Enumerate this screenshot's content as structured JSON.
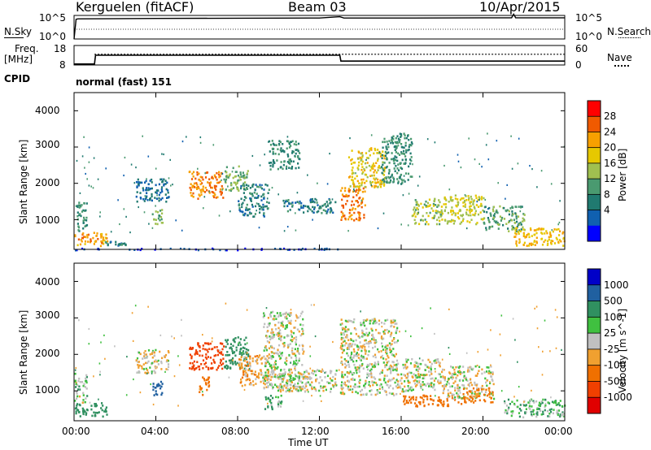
{
  "header": {
    "title": "Kerguelen (fitACF)",
    "beam": "Beam 03",
    "date": "10/Apr/2015"
  },
  "labels": {
    "nsky": "N.Sky",
    "nsearch": "N.Search",
    "freq_line1": "Freq.",
    "freq_line2": "[MHz]",
    "nave": "Nave",
    "cpid": "CPID",
    "cpid_value": "normal (fast) 151",
    "x_axis": "Time UT"
  },
  "noise_panel": {
    "left_ticks": [
      "10^5",
      "10^0"
    ],
    "right_ticks": [
      "10^5",
      "10^0"
    ]
  },
  "freq_panel": {
    "left_ticks": [
      "18",
      "8"
    ],
    "right_ticks": [
      "60",
      "0"
    ]
  },
  "x_ticks": [
    "00:00",
    "04:00",
    "08:00",
    "12:00",
    "16:00",
    "20:00",
    "00:00"
  ],
  "chart_data": [
    {
      "type": "line",
      "name": "N.Sky",
      "x_hours": [
        0,
        0.1,
        0.2,
        4,
        8,
        12,
        13,
        13.2,
        16,
        20,
        21.4,
        21.5,
        21.6,
        24
      ],
      "log10_values": [
        0,
        4.6,
        4.7,
        4.8,
        4.85,
        4.9,
        5.2,
        4.9,
        4.9,
        4.95,
        4.95,
        5.8,
        4.95,
        4.95
      ],
      "left_ylim_labels": [
        "10^0",
        "10^5"
      ]
    },
    {
      "type": "line",
      "name": "Freq. [MHz]",
      "x_hours": [
        0,
        1,
        1.05,
        13,
        13.05,
        24
      ],
      "values": [
        8.5,
        8.5,
        13,
        13,
        10,
        10
      ],
      "ylim": [
        8,
        18
      ],
      "nave_x_hours": [
        1,
        24
      ],
      "nave_values": [
        33,
        33
      ],
      "nave_ylim": [
        0,
        60
      ]
    },
    {
      "type": "heatmap",
      "title": "",
      "ylabel": "Slant Range [km]",
      "colorbar_label": "Power [dB]",
      "colorbar_ticks": [
        "28",
        "24",
        "20",
        "16",
        "12",
        "8",
        "4"
      ],
      "colorbar_colors": [
        "#ff0000",
        "#f05a00",
        "#f7a000",
        "#e6c800",
        "#a0c050",
        "#4a9a70",
        "#207a70",
        "#1060b0",
        "#0000ff"
      ],
      "xlim_hours": [
        0,
        24
      ],
      "ylim_km": [
        180,
        4500
      ],
      "y_ticks": [
        1000,
        2000,
        3000,
        4000
      ],
      "regions": [
        {
          "t0": 0.0,
          "t1": 1.6,
          "r0": 300,
          "r1": 700,
          "power": 24
        },
        {
          "t0": 0.0,
          "t1": 0.6,
          "r0": 700,
          "r1": 1500,
          "power": 10
        },
        {
          "t0": 1.5,
          "t1": 2.5,
          "r0": 300,
          "r1": 420,
          "power": 8
        },
        {
          "t0": 3.0,
          "t1": 4.6,
          "r0": 1500,
          "r1": 2150,
          "power": 6
        },
        {
          "t0": 3.8,
          "t1": 4.3,
          "r0": 900,
          "r1": 1300,
          "power": 14
        },
        {
          "t0": 5.6,
          "t1": 7.3,
          "r0": 1600,
          "r1": 2350,
          "power": 26
        },
        {
          "t0": 7.3,
          "t1": 8.5,
          "r0": 1800,
          "r1": 2500,
          "power": 14
        },
        {
          "t0": 8.0,
          "t1": 9.5,
          "r0": 1100,
          "r1": 2000,
          "power": 8
        },
        {
          "t0": 9.5,
          "t1": 11.0,
          "r0": 2400,
          "r1": 3200,
          "power": 10
        },
        {
          "t0": 10.2,
          "t1": 12.8,
          "r0": 1200,
          "r1": 1600,
          "power": 8
        },
        {
          "t0": 13.0,
          "t1": 14.2,
          "r0": 1000,
          "r1": 1900,
          "power": 26
        },
        {
          "t0": 13.4,
          "t1": 15.2,
          "r0": 1900,
          "r1": 3000,
          "power": 20
        },
        {
          "t0": 15.0,
          "t1": 16.5,
          "r0": 2000,
          "r1": 3400,
          "power": 10
        },
        {
          "t0": 16.5,
          "t1": 18.0,
          "r0": 900,
          "r1": 1600,
          "power": 16
        },
        {
          "t0": 18.0,
          "t1": 20.0,
          "r0": 900,
          "r1": 1700,
          "power": 18
        },
        {
          "t0": 20.0,
          "t1": 22.0,
          "r0": 700,
          "r1": 1400,
          "power": 12
        },
        {
          "t0": 21.5,
          "t1": 24.0,
          "r0": 300,
          "r1": 800,
          "power": 22
        },
        {
          "t0": 0.0,
          "t1": 13.0,
          "r0": 180,
          "r1": 230,
          "power": 2
        }
      ]
    },
    {
      "type": "heatmap",
      "title": "",
      "ylabel": "Slant Range [km]",
      "colorbar_label": "Velocity [m s^-1]",
      "colorbar_ticks": [
        "1000",
        "500",
        "100",
        "25",
        "-25",
        "-100",
        "-500",
        "-1000"
      ],
      "colorbar_colors": [
        "#0000c8",
        "#2060a0",
        "#309060",
        "#40c040",
        "#c0c0c0",
        "#f0a030",
        "#f07000",
        "#f04000",
        "#e00000"
      ],
      "xlim_hours": [
        0,
        24
      ],
      "ylim_km": [
        180,
        4500
      ],
      "y_ticks": [
        1000,
        2000,
        3000,
        4000
      ],
      "regions": [
        {
          "t0": 0.0,
          "t1": 1.6,
          "r0": 300,
          "r1": 700,
          "velocity": 150
        },
        {
          "t0": 0.0,
          "t1": 0.6,
          "r0": 700,
          "r1": 1500,
          "velocity": 20
        },
        {
          "t0": 3.0,
          "t1": 4.6,
          "r0": 1500,
          "r1": 2150,
          "velocity": -10
        },
        {
          "t0": 3.8,
          "t1": 4.3,
          "r0": 900,
          "r1": 1300,
          "velocity": 700
        },
        {
          "t0": 5.6,
          "t1": 7.3,
          "r0": 1600,
          "r1": 2350,
          "velocity": -800
        },
        {
          "t0": 6.0,
          "t1": 6.6,
          "r0": 900,
          "r1": 1400,
          "velocity": -300
        },
        {
          "t0": 7.3,
          "t1": 8.5,
          "r0": 1600,
          "r1": 2500,
          "velocity": 200
        },
        {
          "t0": 8.0,
          "t1": 9.5,
          "r0": 1100,
          "r1": 2000,
          "velocity": -60
        },
        {
          "t0": 9.2,
          "t1": 11.2,
          "r0": 1000,
          "r1": 3200,
          "velocity": 0
        },
        {
          "t0": 10.0,
          "t1": 12.8,
          "r0": 1000,
          "r1": 1600,
          "velocity": 0
        },
        {
          "t0": 13.0,
          "t1": 15.8,
          "r0": 900,
          "r1": 3000,
          "velocity": 0
        },
        {
          "t0": 15.8,
          "t1": 18.0,
          "r0": 1000,
          "r1": 1900,
          "velocity": 0
        },
        {
          "t0": 16.0,
          "t1": 19.0,
          "r0": 600,
          "r1": 900,
          "velocity": -300
        },
        {
          "t0": 18.0,
          "t1": 20.5,
          "r0": 800,
          "r1": 1700,
          "velocity": -5
        },
        {
          "t0": 19.0,
          "t1": 20.5,
          "r0": 700,
          "r1": 1100,
          "velocity": -150
        },
        {
          "t0": 21.0,
          "t1": 24.0,
          "r0": 300,
          "r1": 800,
          "velocity": 60
        },
        {
          "t0": 9.3,
          "t1": 10.2,
          "r0": 500,
          "r1": 900,
          "velocity": 60
        }
      ]
    }
  ]
}
